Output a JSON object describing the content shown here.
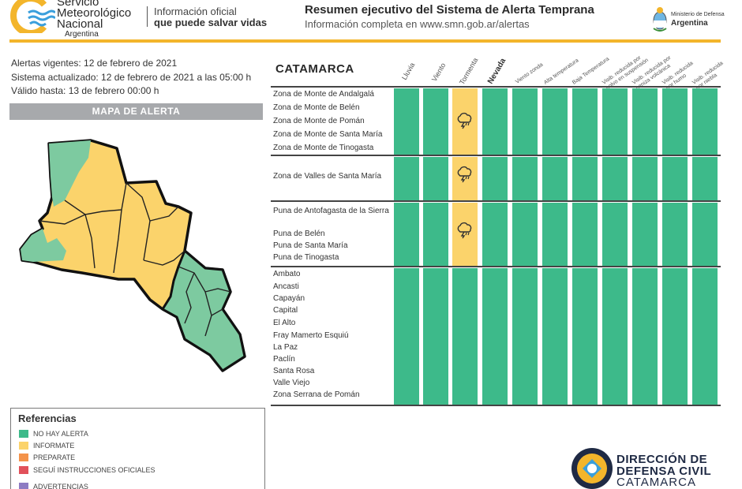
{
  "header": {
    "org_line1": "Servicio",
    "org_line2": "Meteorológico",
    "org_line3": "Nacional",
    "org_line4": "Argentina",
    "tagline1": "Información oficial",
    "tagline2": "que puede salvar vidas",
    "title": "Resumen ejecutivo del Sistema de Alerta Temprana",
    "subtitle": "Información completa en www.smn.gob.ar/alertas",
    "ministry_line1": "Ministerio de Defensa",
    "ministry_line2": "Argentina"
  },
  "info": {
    "vigentes": "Alertas vigentes: 12 de febrero de 2021",
    "actualizado": "Sistema actualizado: 12 de febrero de 2021 a las 05:00 h",
    "valido": "Válido hasta: 13 de febrero 00:00 h"
  },
  "map": {
    "header": "MAPA DE ALERTA"
  },
  "references": {
    "title": "Referencias",
    "items": [
      {
        "label": "NO HAY ALERTA",
        "color": "#3dba8a"
      },
      {
        "label": "INFORMATE",
        "color": "#fbd36b"
      },
      {
        "label": "PREPARATE",
        "color": "#f4934a"
      },
      {
        "label": "SEGUÍ INSTRUCCIONES OFICIALES",
        "color": "#e1515a"
      },
      {
        "label": "ADVERTENCIAS",
        "color": "#8e7cc3"
      }
    ]
  },
  "table": {
    "province": "CATAMARCA",
    "columns": [
      "Lluvia",
      "Viento",
      "Tormenta",
      "Nevada",
      "Viento zonda",
      "Alta temperatura",
      "Baja Temperatura",
      "Visib. reducida por polvo en suspensión",
      "Visib. reducida por ceniza volcánica",
      "Visib. reducida por humo",
      "Visib. reducida por niebla"
    ],
    "groups": [
      {
        "zones": [
          "Zona de Monte de Andalgalá",
          "Zona de Monte de Belén",
          "Zona de Monte de Pomán",
          "Zona de Monte de Santa María",
          "Zona de Monte de Tinogasta"
        ],
        "tormenta": "informate"
      },
      {
        "zones": [
          "Zona de Valles de Santa María"
        ],
        "tormenta": "informate"
      },
      {
        "zones": [
          "Puna de Antofagasta de la Sierra",
          "Puna de Belén",
          "Puna de Santa María",
          "Puna de Tinogasta"
        ],
        "tormenta": "informate"
      },
      {
        "zones": [
          "Ambato",
          "Ancasti",
          "Capayán",
          "Capital",
          "El Alto",
          "Fray Mamerto Esquiú",
          "La Paz",
          "Paclín",
          "Santa Rosa",
          "Valle Viejo",
          "Zona Serrana de Pomán"
        ],
        "tormenta": "no_alerta"
      }
    ]
  },
  "footer": {
    "line1": "DIRECCIÓN DE",
    "line2": "DEFENSA CIVIL",
    "line3": "CATAMARCA"
  },
  "colors": {
    "green": "#3dba8a",
    "yellow": "#fbd36b",
    "brand_gold": "#f3b52b",
    "brand_blue": "#3a9fdc"
  }
}
